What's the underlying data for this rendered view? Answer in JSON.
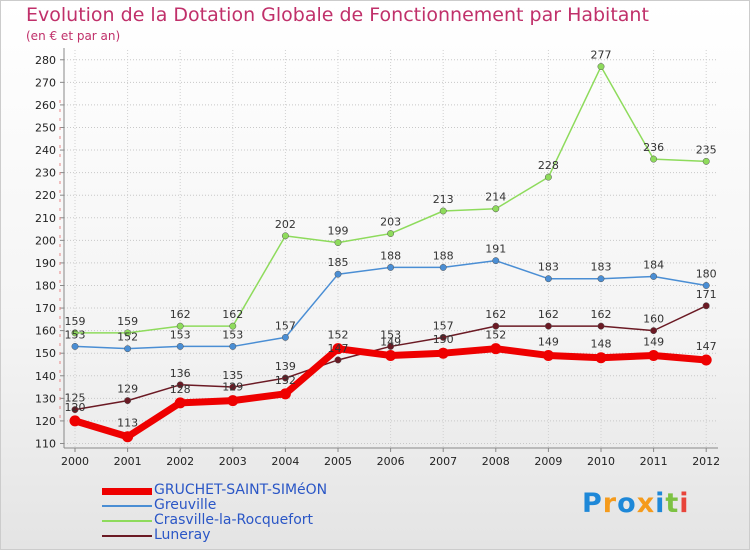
{
  "chart_data": {
    "type": "line",
    "title": "Evolution de la Dotation Globale de Fonctionnement par Habitant",
    "subtitle": "(en € et par an)",
    "categories": [
      "2000",
      "2001",
      "2002",
      "2003",
      "2004",
      "2005",
      "2006",
      "2007",
      "2008",
      "2009",
      "2010",
      "2011",
      "2012"
    ],
    "yticks": [
      110,
      120,
      130,
      140,
      150,
      160,
      170,
      180,
      190,
      200,
      210,
      220,
      230,
      240,
      250,
      260,
      270,
      280
    ],
    "ylim": [
      108,
      283
    ],
    "series": [
      {
        "name": "GRUCHET-SAINT-SIMéON",
        "color": "#ee0000",
        "width": 7,
        "values": [
          120,
          113,
          128,
          129,
          132,
          152,
          149,
          150,
          152,
          149,
          148,
          149,
          147
        ],
        "labels": [
          "120",
          "113",
          "128",
          "129",
          "132",
          "152",
          "149",
          "150",
          "152",
          "149",
          "148",
          "149",
          "147"
        ]
      },
      {
        "name": "Greuville",
        "color": "#4a8ed4",
        "width": 1.5,
        "values": [
          153,
          152,
          153,
          153,
          157,
          185,
          188,
          188,
          191,
          183,
          183,
          184,
          180
        ],
        "labels": [
          "153",
          "152",
          "153",
          "153",
          "157",
          "185",
          "188",
          "188",
          "191",
          "183",
          "183",
          "184",
          "180"
        ]
      },
      {
        "name": "Crasville-la-Rocquefort",
        "color": "#8edb5c",
        "width": 1.5,
        "values": [
          159,
          159,
          162,
          162,
          202,
          199,
          203,
          213,
          214,
          228,
          277,
          236,
          235
        ],
        "labels": [
          "159",
          "159",
          "162",
          "162",
          "202",
          "199",
          "203",
          "213",
          "214",
          "228",
          "277",
          "236",
          "235"
        ]
      },
      {
        "name": "Luneray",
        "color": "#6b1a24",
        "width": 1.5,
        "values": [
          125,
          129,
          136,
          135,
          139,
          147,
          153,
          157,
          162,
          162,
          162,
          160,
          171
        ],
        "labels": [
          "125",
          "129",
          "136",
          "135",
          "139",
          "147",
          "153",
          "157",
          "162",
          "162",
          "162",
          "160",
          "171"
        ]
      }
    ]
  },
  "logo": {
    "text": "Proxiti"
  }
}
